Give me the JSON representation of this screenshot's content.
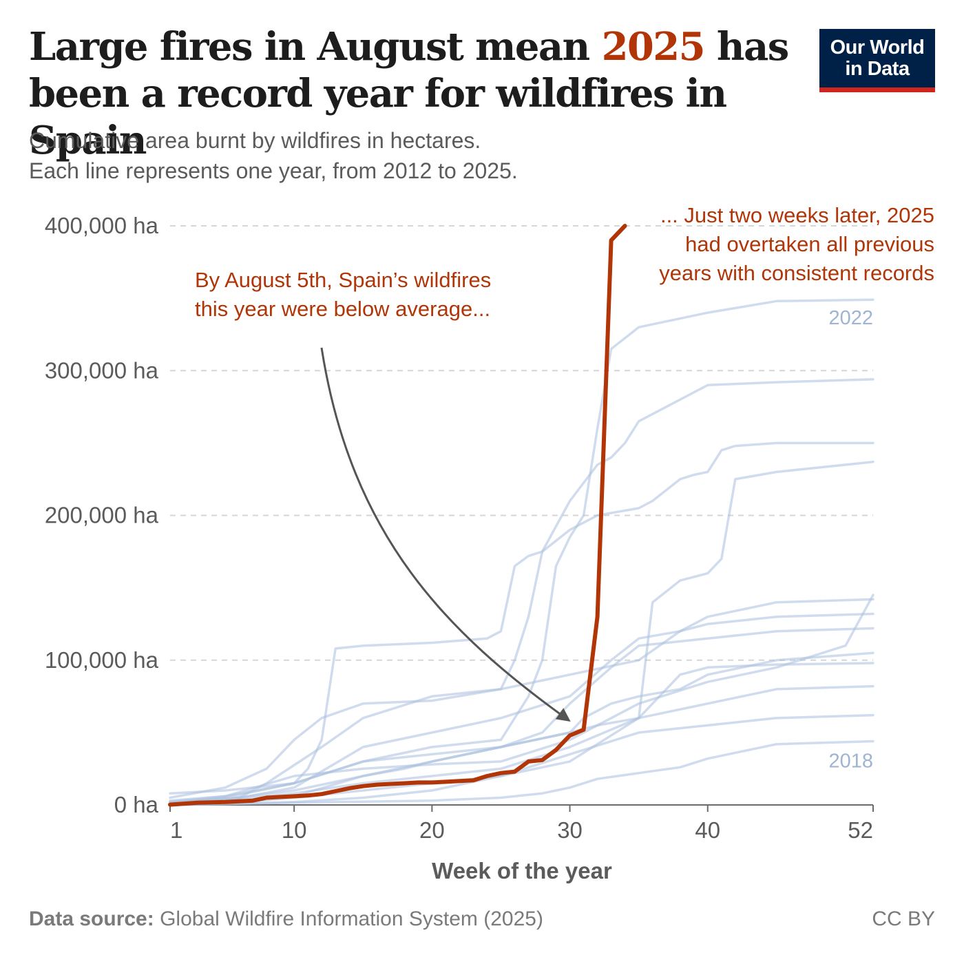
{
  "header": {
    "title_part1": "Large fires in August mean ",
    "title_highlight": "2025",
    "title_part2": " has been a record year for wildfires in Spain",
    "subtitle_line1": "Cumulative area burnt by wildfires in hectares.",
    "subtitle_line2": "Each line represents one year, from 2012 to 2025."
  },
  "logo": {
    "line1": "Our World",
    "line2": "in Data"
  },
  "colors": {
    "highlight": "#b13507",
    "past_years": "#a9bfdf",
    "logo_bg": "#002147",
    "logo_bar": "#ce261e"
  },
  "footer": {
    "source_label": "Data source:",
    "source_text": " Global Wildfire Information System (2025)",
    "license": "CC BY"
  },
  "chart_data": {
    "type": "line",
    "xlabel": "Week of the year",
    "ylabel": "",
    "xlim": [
      1,
      52
    ],
    "ylim": [
      0,
      400000
    ],
    "x_ticks": [
      1,
      10,
      20,
      30,
      40,
      52
    ],
    "y_ticks": [
      0,
      100000,
      200000,
      300000,
      400000
    ],
    "y_tick_labels": [
      "0 ha",
      "100,000 ha",
      "200,000 ha",
      "300,000 ha",
      "400,000 ha"
    ],
    "grid": "horizontal dashed",
    "annotations": [
      {
        "lines": [
          "By August 5th, Spain’s wildfires",
          "this year were below average..."
        ]
      },
      {
        "lines": [
          "... Just two weeks later, 2025",
          "had overtaken all previous",
          "years with consistent records"
        ]
      }
    ],
    "series": [
      {
        "name": "2022",
        "x": [
          1,
          5,
          10,
          15,
          20,
          25,
          26,
          27,
          28,
          29,
          30,
          31,
          32,
          33,
          35,
          40,
          45,
          52
        ],
        "y": [
          3000,
          6000,
          15000,
          30000,
          40000,
          45000,
          60000,
          75000,
          100000,
          165000,
          185000,
          200000,
          260000,
          315000,
          330000,
          340000,
          348000,
          349000
        ]
      },
      {
        "name": "2018",
        "x": [
          1,
          10,
          20,
          25,
          28,
          30,
          32,
          35,
          38,
          40,
          45,
          52
        ],
        "y": [
          0,
          1500,
          3000,
          5000,
          8000,
          12000,
          18000,
          22000,
          26000,
          32000,
          42000,
          44000
        ]
      },
      {
        "name": "",
        "x": [
          1,
          5,
          8,
          10,
          12,
          15,
          20,
          25,
          26,
          27,
          28,
          30,
          32,
          33,
          34,
          35,
          36,
          37,
          40,
          45,
          52
        ],
        "y": [
          5000,
          12000,
          25000,
          45000,
          60000,
          70000,
          72000,
          80000,
          100000,
          130000,
          175000,
          210000,
          235000,
          240000,
          250000,
          265000,
          270000,
          275000,
          290000,
          292000,
          294000
        ]
      },
      {
        "name": "",
        "x": [
          1,
          5,
          10,
          11,
          12,
          13,
          15,
          20,
          24,
          25,
          26,
          27,
          28,
          30,
          32,
          35,
          36,
          38,
          39,
          40,
          41,
          42,
          45,
          52
        ],
        "y": [
          8000,
          10000,
          15000,
          25000,
          45000,
          108000,
          110000,
          112000,
          115000,
          120000,
          165000,
          172000,
          175000,
          190000,
          200000,
          205000,
          210000,
          225000,
          228000,
          230000,
          245000,
          248000,
          250000,
          250000
        ]
      },
      {
        "name": "",
        "x": [
          1,
          5,
          10,
          15,
          20,
          25,
          30,
          35,
          36,
          38,
          40,
          41,
          42,
          45,
          52
        ],
        "y": [
          0,
          1000,
          5000,
          10000,
          15000,
          20000,
          30000,
          60000,
          140000,
          155000,
          160000,
          170000,
          225000,
          230000,
          237000
        ]
      },
      {
        "name": "",
        "x": [
          1,
          5,
          10,
          15,
          20,
          25,
          30,
          33,
          35,
          38,
          40,
          45,
          52
        ],
        "y": [
          1000,
          3000,
          12000,
          40000,
          50000,
          60000,
          75000,
          100000,
          115000,
          120000,
          125000,
          130000,
          132000
        ]
      },
      {
        "name": "",
        "x": [
          1,
          6,
          8,
          12,
          15,
          20,
          25,
          30,
          35,
          38,
          40,
          45,
          52
        ],
        "y": [
          2000,
          5000,
          15000,
          40000,
          60000,
          75000,
          80000,
          90000,
          100000,
          120000,
          130000,
          140000,
          142000
        ]
      },
      {
        "name": "",
        "x": [
          1,
          5,
          10,
          15,
          18,
          20,
          25,
          30,
          32,
          35,
          40,
          45,
          52
        ],
        "y": [
          500,
          2000,
          6000,
          20000,
          25000,
          30000,
          40000,
          50000,
          55000,
          60000,
          70000,
          80000,
          82000
        ]
      },
      {
        "name": "",
        "x": [
          1,
          5,
          10,
          15,
          20,
          25,
          30,
          35,
          40,
          45,
          52
        ],
        "y": [
          0,
          500,
          2000,
          5000,
          10000,
          20000,
          35000,
          50000,
          55000,
          60000,
          62000
        ]
      },
      {
        "name": "",
        "x": [
          1,
          5,
          10,
          15,
          20,
          25,
          30,
          31,
          33,
          35,
          38,
          40,
          45,
          52
        ],
        "y": [
          1000,
          4000,
          10000,
          20000,
          30000,
          40000,
          50000,
          60000,
          70000,
          75000,
          80000,
          90000,
          100000,
          105000
        ]
      },
      {
        "name": "",
        "x": [
          1,
          5,
          10,
          15,
          20,
          25,
          30,
          35,
          38,
          40,
          45,
          52
        ],
        "y": [
          500,
          3000,
          8000,
          15000,
          20000,
          25000,
          40000,
          60000,
          90000,
          95000,
          97000,
          98000
        ]
      },
      {
        "name": "",
        "x": [
          1,
          5,
          10,
          15,
          20,
          25,
          28,
          30,
          33,
          35,
          40,
          45,
          52
        ],
        "y": [
          1000,
          5000,
          15000,
          30000,
          35000,
          40000,
          50000,
          70000,
          95000,
          110000,
          115000,
          120000,
          122000
        ]
      },
      {
        "name": "",
        "x": [
          1,
          5,
          10,
          15,
          20,
          25,
          30,
          35,
          40,
          45,
          50,
          52
        ],
        "y": [
          2000,
          6000,
          20000,
          25000,
          28000,
          30000,
          45000,
          70000,
          85000,
          95000,
          110000,
          145000
        ]
      },
      {
        "name": "2025",
        "x": [
          1,
          3,
          5,
          6,
          7,
          8,
          9,
          10,
          11,
          12,
          13,
          14,
          15,
          16,
          17,
          18,
          19,
          20,
          21,
          22,
          23,
          24,
          25,
          26,
          27,
          28,
          29,
          30,
          31,
          32,
          33,
          34
        ],
        "y": [
          200,
          1500,
          2000,
          2500,
          3000,
          5000,
          5500,
          6000,
          6500,
          7500,
          9500,
          11500,
          13000,
          14000,
          14500,
          15000,
          15500,
          15500,
          16000,
          16500,
          17000,
          20000,
          22000,
          23000,
          30000,
          31000,
          38000,
          48000,
          52000,
          130000,
          390000,
          400000
        ]
      }
    ]
  }
}
